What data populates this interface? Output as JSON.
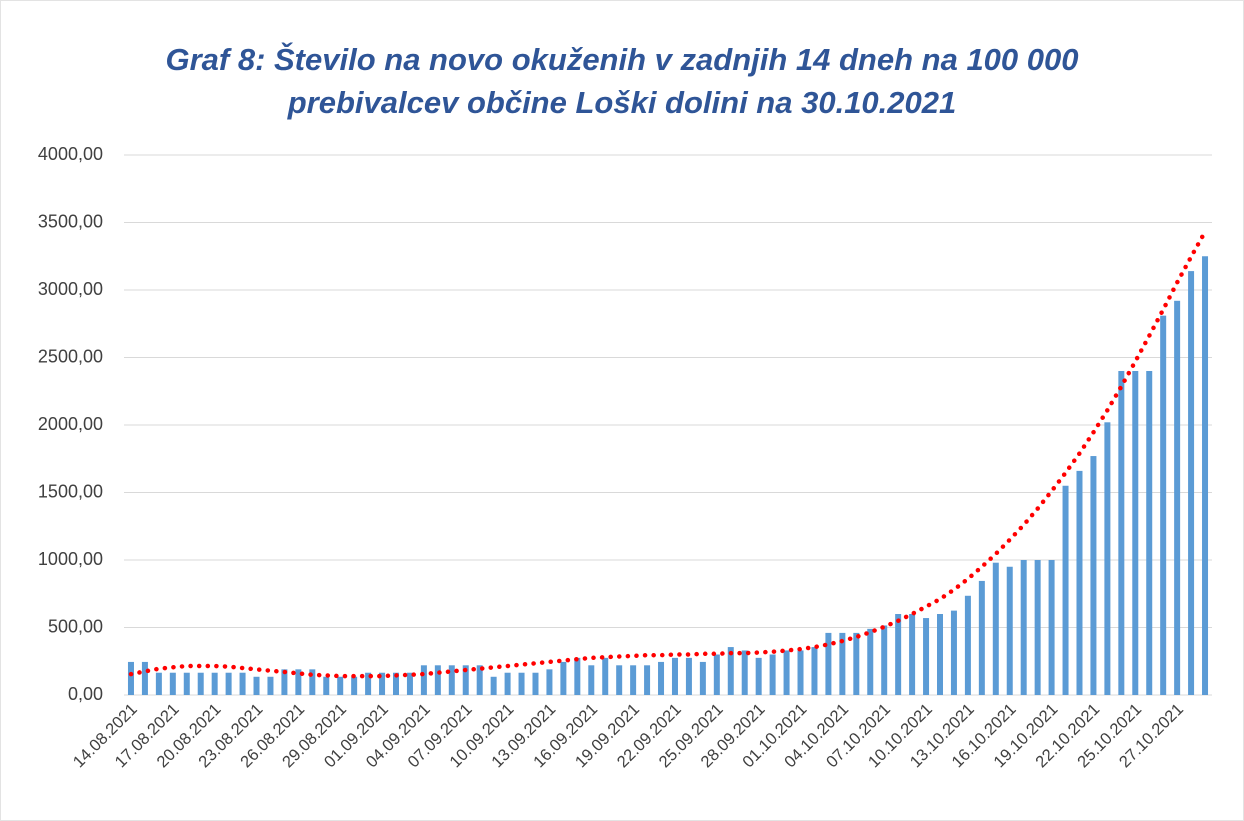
{
  "chart_data": {
    "type": "bar",
    "title": [
      "Graf 8: Število na novo okuženih v zadnjih 14 dneh na 100 000",
      "prebivalcev občine Loški dolini na 30.10.2021"
    ],
    "categories": [
      "14.08.2021",
      null,
      null,
      "17.08.2021",
      null,
      null,
      "20.08.2021",
      null,
      null,
      "23.08.2021",
      null,
      null,
      "26.08.2021",
      null,
      null,
      "29.08.2021",
      null,
      null,
      "01.09.2021",
      null,
      null,
      "04.09.2021",
      null,
      null,
      "07.09.2021",
      null,
      null,
      "10.09.2021",
      null,
      null,
      "13.09.2021",
      null,
      null,
      "16.09.2021",
      null,
      null,
      "19.09.2021",
      null,
      null,
      "22.09.2021",
      null,
      null,
      "25.09.2021",
      null,
      null,
      "28.09.2021",
      null,
      null,
      "01.10.2021",
      null,
      null,
      "04.10.2021",
      null,
      null,
      "07.10.2021",
      null,
      null,
      "10.10.2021",
      null,
      null,
      "13.10.2021",
      null,
      null,
      "16.10.2021",
      null,
      null,
      "19.10.2021",
      null,
      null,
      "22.10.2021",
      null,
      null,
      "25.10.2021",
      null,
      null,
      "27.10.2021",
      null,
      null
    ],
    "values": [
      245,
      245,
      165,
      165,
      165,
      165,
      165,
      165,
      165,
      135,
      135,
      190,
      190,
      190,
      135,
      135,
      135,
      165,
      165,
      165,
      165,
      220,
      220,
      220,
      220,
      220,
      135,
      165,
      165,
      165,
      190,
      245,
      275,
      220,
      275,
      220,
      220,
      220,
      245,
      275,
      275,
      245,
      300,
      355,
      330,
      275,
      300,
      330,
      330,
      355,
      460,
      460,
      460,
      490,
      515,
      600,
      600,
      570,
      600,
      625,
      735,
      845,
      980,
      950,
      1000,
      1000,
      1000,
      1550,
      1660,
      1770,
      2020,
      2400,
      2400,
      2400,
      2810,
      2920,
      3140,
      3250
    ],
    "color": "#5b9bd5",
    "trendline": {
      "color": "#ff0000",
      "values": [
        155,
        175,
        195,
        205,
        215,
        215,
        215,
        210,
        200,
        190,
        180,
        170,
        160,
        150,
        145,
        140,
        140,
        140,
        140,
        145,
        150,
        155,
        165,
        175,
        185,
        195,
        205,
        215,
        225,
        235,
        245,
        255,
        265,
        275,
        280,
        285,
        290,
        295,
        295,
        300,
        300,
        305,
        305,
        310,
        310,
        315,
        320,
        330,
        340,
        355,
        375,
        400,
        430,
        465,
        505,
        550,
        600,
        655,
        710,
        780,
        860,
        950,
        1045,
        1150,
        1260,
        1380,
        1510,
        1645,
        1790,
        1945,
        2110,
        2285,
        2470,
        2660,
        2855,
        3055,
        3245,
        3430
      ]
    },
    "ylim": [
      0,
      4000
    ],
    "yticks": [
      {
        "value": 0,
        "label": "0,00"
      },
      {
        "value": 500,
        "label": "500,00"
      },
      {
        "value": 1000,
        "label": "1000,00"
      },
      {
        "value": 1500,
        "label": "1500,00"
      },
      {
        "value": 2000,
        "label": "2000,00"
      },
      {
        "value": 2500,
        "label": "2500,00"
      },
      {
        "value": 3000,
        "label": "3000,00"
      },
      {
        "value": 3500,
        "label": "3500,00"
      },
      {
        "value": 4000,
        "label": "4000,00"
      }
    ],
    "grid": true
  }
}
